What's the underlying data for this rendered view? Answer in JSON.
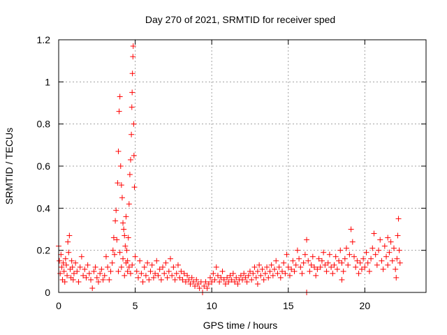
{
  "chart_data": {
    "type": "scatter",
    "title": "Day 270 of 2021, SRMTID for receiver sped",
    "xlabel": "GPS time / hours",
    "ylabel": "SRMTID / TECUs",
    "xlim": [
      0,
      24
    ],
    "ylim": [
      0,
      1.2
    ],
    "xticks": [
      0,
      5,
      10,
      15,
      20
    ],
    "yticks": [
      0,
      0.2,
      0.4,
      0.6,
      0.8,
      1.0,
      1.2
    ],
    "xtick_labels": [
      "0",
      "5",
      "10",
      "15",
      "20"
    ],
    "ytick_labels": [
      "0",
      "0.2",
      "0.4",
      "0.6",
      "0.8",
      "1",
      "1.2"
    ],
    "grid": true,
    "marker": "+",
    "marker_color": "#ff0000",
    "series": [
      {
        "name": "SRMTID",
        "points": [
          [
            0.0,
            0.22
          ],
          [
            0.05,
            0.15
          ],
          [
            0.1,
            0.09
          ],
          [
            0.15,
            0.18
          ],
          [
            0.2,
            0.12
          ],
          [
            0.25,
            0.06
          ],
          [
            0.3,
            0.14
          ],
          [
            0.35,
            0.1
          ],
          [
            0.4,
            0.05
          ],
          [
            0.45,
            0.16
          ],
          [
            0.5,
            0.13
          ],
          [
            0.55,
            0.08
          ],
          [
            0.6,
            0.24
          ],
          [
            0.65,
            0.19
          ],
          [
            0.7,
            0.27
          ],
          [
            0.75,
            0.11
          ],
          [
            0.8,
            0.07
          ],
          [
            0.85,
            0.15
          ],
          [
            0.9,
            0.12
          ],
          [
            0.95,
            0.06
          ],
          [
            1.0,
            0.09
          ],
          [
            1.1,
            0.14
          ],
          [
            1.2,
            0.1
          ],
          [
            1.3,
            0.05
          ],
          [
            1.4,
            0.12
          ],
          [
            1.5,
            0.17
          ],
          [
            1.6,
            0.08
          ],
          [
            1.7,
            0.11
          ],
          [
            1.8,
            0.07
          ],
          [
            1.9,
            0.13
          ],
          [
            2.0,
            0.09
          ],
          [
            2.1,
            0.06
          ],
          [
            2.2,
            0.02
          ],
          [
            2.3,
            0.1
          ],
          [
            2.4,
            0.12
          ],
          [
            2.5,
            0.07
          ],
          [
            2.6,
            0.05
          ],
          [
            2.7,
            0.09
          ],
          [
            2.8,
            0.11
          ],
          [
            2.9,
            0.06
          ],
          [
            3.0,
            0.08
          ],
          [
            3.1,
            0.17
          ],
          [
            3.2,
            0.12
          ],
          [
            3.3,
            0.06
          ],
          [
            3.4,
            0.1
          ],
          [
            3.5,
            0.14
          ],
          [
            3.55,
            0.2
          ],
          [
            3.6,
            0.26
          ],
          [
            3.65,
            0.18
          ],
          [
            3.7,
            0.34
          ],
          [
            3.75,
            0.39
          ],
          [
            3.8,
            0.25
          ],
          [
            3.85,
            0.52
          ],
          [
            3.9,
            0.67
          ],
          [
            3.95,
            0.86
          ],
          [
            4.0,
            0.93
          ],
          [
            4.05,
            0.6
          ],
          [
            4.1,
            0.51
          ],
          [
            4.15,
            0.45
          ],
          [
            4.2,
            0.33
          ],
          [
            4.25,
            0.3
          ],
          [
            4.3,
            0.27
          ],
          [
            4.35,
            0.22
          ],
          [
            4.4,
            0.36
          ],
          [
            4.45,
            0.2
          ],
          [
            4.5,
            0.15
          ],
          [
            4.55,
            0.26
          ],
          [
            4.6,
            0.42
          ],
          [
            4.65,
            0.56
          ],
          [
            4.7,
            0.63
          ],
          [
            4.75,
            0.75
          ],
          [
            4.78,
            0.88
          ],
          [
            4.8,
            0.95
          ],
          [
            4.82,
            1.04
          ],
          [
            4.85,
            1.12
          ],
          [
            4.87,
            1.17
          ],
          [
            4.9,
            0.8
          ],
          [
            4.92,
            0.65
          ],
          [
            4.95,
            0.5
          ],
          [
            5.0,
            0.17
          ],
          [
            3.9,
            0.1
          ],
          [
            4.0,
            0.19
          ],
          [
            4.1,
            0.12
          ],
          [
            4.2,
            0.16
          ],
          [
            4.3,
            0.08
          ],
          [
            4.4,
            0.14
          ],
          [
            4.5,
            0.1
          ],
          [
            4.6,
            0.12
          ],
          [
            4.7,
            0.09
          ],
          [
            4.8,
            0.13
          ],
          [
            5.1,
            0.1
          ],
          [
            5.2,
            0.07
          ],
          [
            5.3,
            0.15
          ],
          [
            5.4,
            0.09
          ],
          [
            5.5,
            0.05
          ],
          [
            5.6,
            0.12
          ],
          [
            5.7,
            0.08
          ],
          [
            5.8,
            0.14
          ],
          [
            5.9,
            0.06
          ],
          [
            6.0,
            0.1
          ],
          [
            6.1,
            0.13
          ],
          [
            6.2,
            0.07
          ],
          [
            6.3,
            0.09
          ],
          [
            6.4,
            0.15
          ],
          [
            6.5,
            0.08
          ],
          [
            6.6,
            0.11
          ],
          [
            6.7,
            0.06
          ],
          [
            6.8,
            0.12
          ],
          [
            6.9,
            0.09
          ],
          [
            7.0,
            0.14
          ],
          [
            7.1,
            0.07
          ],
          [
            7.2,
            0.1
          ],
          [
            7.3,
            0.16
          ],
          [
            7.4,
            0.08
          ],
          [
            7.5,
            0.12
          ],
          [
            7.6,
            0.06
          ],
          [
            7.7,
            0.09
          ],
          [
            7.8,
            0.13
          ],
          [
            7.9,
            0.07
          ],
          [
            8.0,
            0.1
          ],
          [
            8.1,
            0.06
          ],
          [
            8.2,
            0.09
          ],
          [
            8.3,
            0.05
          ],
          [
            8.4,
            0.08
          ],
          [
            8.5,
            0.06
          ],
          [
            8.6,
            0.04
          ],
          [
            8.7,
            0.07
          ],
          [
            8.8,
            0.05
          ],
          [
            8.9,
            0.03
          ],
          [
            9.0,
            0.06
          ],
          [
            9.1,
            0.04
          ],
          [
            9.2,
            0.02
          ],
          [
            9.3,
            0.05
          ],
          [
            9.4,
            0.0
          ],
          [
            9.5,
            0.03
          ],
          [
            9.6,
            0.05
          ],
          [
            9.7,
            0.02
          ],
          [
            9.8,
            0.04
          ],
          [
            9.9,
            0.07
          ],
          [
            10.0,
            0.05
          ],
          [
            10.1,
            0.09
          ],
          [
            10.2,
            0.06
          ],
          [
            10.3,
            0.12
          ],
          [
            10.4,
            0.08
          ],
          [
            10.5,
            0.05
          ],
          [
            10.6,
            0.07
          ],
          [
            10.7,
            0.1
          ],
          [
            10.8,
            0.06
          ],
          [
            10.9,
            0.04
          ],
          [
            11.0,
            0.07
          ],
          [
            11.1,
            0.05
          ],
          [
            11.2,
            0.08
          ],
          [
            11.3,
            0.06
          ],
          [
            11.4,
            0.09
          ],
          [
            11.5,
            0.05
          ],
          [
            11.6,
            0.07
          ],
          [
            11.7,
            0.04
          ],
          [
            11.8,
            0.06
          ],
          [
            11.9,
            0.08
          ],
          [
            12.0,
            0.06
          ],
          [
            12.1,
            0.09
          ],
          [
            12.2,
            0.07
          ],
          [
            12.3,
            0.05
          ],
          [
            12.4,
            0.08
          ],
          [
            12.5,
            0.1
          ],
          [
            12.6,
            0.06
          ],
          [
            12.7,
            0.09
          ],
          [
            12.8,
            0.12
          ],
          [
            12.9,
            0.07
          ],
          [
            13.0,
            0.1
          ],
          [
            13.1,
            0.13
          ],
          [
            13.2,
            0.08
          ],
          [
            13.3,
            0.11
          ],
          [
            13.4,
            0.06
          ],
          [
            13.5,
            0.09
          ],
          [
            13.6,
            0.12
          ],
          [
            13.7,
            0.07
          ],
          [
            13.8,
            0.1
          ],
          [
            13.9,
            0.13
          ],
          [
            14.0,
            0.08
          ],
          [
            14.1,
            0.11
          ],
          [
            14.2,
            0.15
          ],
          [
            14.3,
            0.09
          ],
          [
            14.4,
            0.12
          ],
          [
            14.5,
            0.07
          ],
          [
            14.6,
            0.1
          ],
          [
            14.7,
            0.14
          ],
          [
            14.8,
            0.09
          ],
          [
            14.9,
            0.18
          ],
          [
            15.0,
            0.12
          ],
          [
            15.1,
            0.08
          ],
          [
            15.2,
            0.11
          ],
          [
            15.3,
            0.15
          ],
          [
            15.4,
            0.1
          ],
          [
            15.5,
            0.13
          ],
          [
            15.6,
            0.2
          ],
          [
            15.7,
            0.16
          ],
          [
            15.8,
            0.12
          ],
          [
            15.9,
            0.09
          ],
          [
            16.0,
            0.14
          ],
          [
            16.1,
            0.18
          ],
          [
            16.2,
            0.25
          ],
          [
            16.3,
            0.15
          ],
          [
            16.4,
            0.1
          ],
          [
            16.5,
            0.13
          ],
          [
            16.6,
            0.17
          ],
          [
            16.7,
            0.12
          ],
          [
            16.8,
            0.08
          ],
          [
            16.9,
            0.11
          ],
          [
            17.0,
            0.16
          ],
          [
            17.1,
            0.12
          ],
          [
            17.2,
            0.15
          ],
          [
            17.3,
            0.19
          ],
          [
            17.4,
            0.13
          ],
          [
            17.5,
            0.1
          ],
          [
            17.6,
            0.14
          ],
          [
            17.7,
            0.18
          ],
          [
            17.8,
            0.12
          ],
          [
            17.9,
            0.09
          ],
          [
            18.0,
            0.13
          ],
          [
            18.1,
            0.17
          ],
          [
            18.2,
            0.11
          ],
          [
            18.3,
            0.15
          ],
          [
            18.4,
            0.2
          ],
          [
            18.5,
            0.14
          ],
          [
            18.6,
            0.1
          ],
          [
            18.7,
            0.16
          ],
          [
            18.8,
            0.21
          ],
          [
            18.9,
            0.13
          ],
          [
            19.0,
            0.18
          ],
          [
            19.1,
            0.3
          ],
          [
            19.2,
            0.24
          ],
          [
            19.3,
            0.17
          ],
          [
            19.4,
            0.12
          ],
          [
            19.5,
            0.15
          ],
          [
            19.6,
            0.09
          ],
          [
            19.7,
            0.14
          ],
          [
            19.8,
            0.11
          ],
          [
            19.9,
            0.16
          ],
          [
            20.0,
            0.12
          ],
          [
            20.1,
            0.19
          ],
          [
            20.2,
            0.14
          ],
          [
            20.3,
            0.1
          ],
          [
            20.4,
            0.16
          ],
          [
            20.5,
            0.21
          ],
          [
            20.6,
            0.28
          ],
          [
            20.7,
            0.18
          ],
          [
            20.8,
            0.13
          ],
          [
            20.9,
            0.2
          ],
          [
            21.0,
            0.25
          ],
          [
            21.1,
            0.15
          ],
          [
            21.2,
            0.11
          ],
          [
            21.3,
            0.22
          ],
          [
            21.4,
            0.17
          ],
          [
            21.5,
            0.13
          ],
          [
            21.6,
            0.19
          ],
          [
            21.7,
            0.24
          ],
          [
            21.8,
            0.15
          ],
          [
            21.9,
            0.21
          ],
          [
            22.0,
            0.11
          ],
          [
            22.05,
            0.07
          ],
          [
            22.1,
            0.16
          ],
          [
            22.15,
            0.27
          ],
          [
            22.2,
            0.35
          ],
          [
            22.25,
            0.2
          ],
          [
            22.3,
            0.14
          ],
          [
            16.2,
            0.0
          ],
          [
            13.0,
            0.04
          ],
          [
            18.5,
            0.06
          ],
          [
            21.5,
            0.26
          ]
        ]
      }
    ]
  }
}
